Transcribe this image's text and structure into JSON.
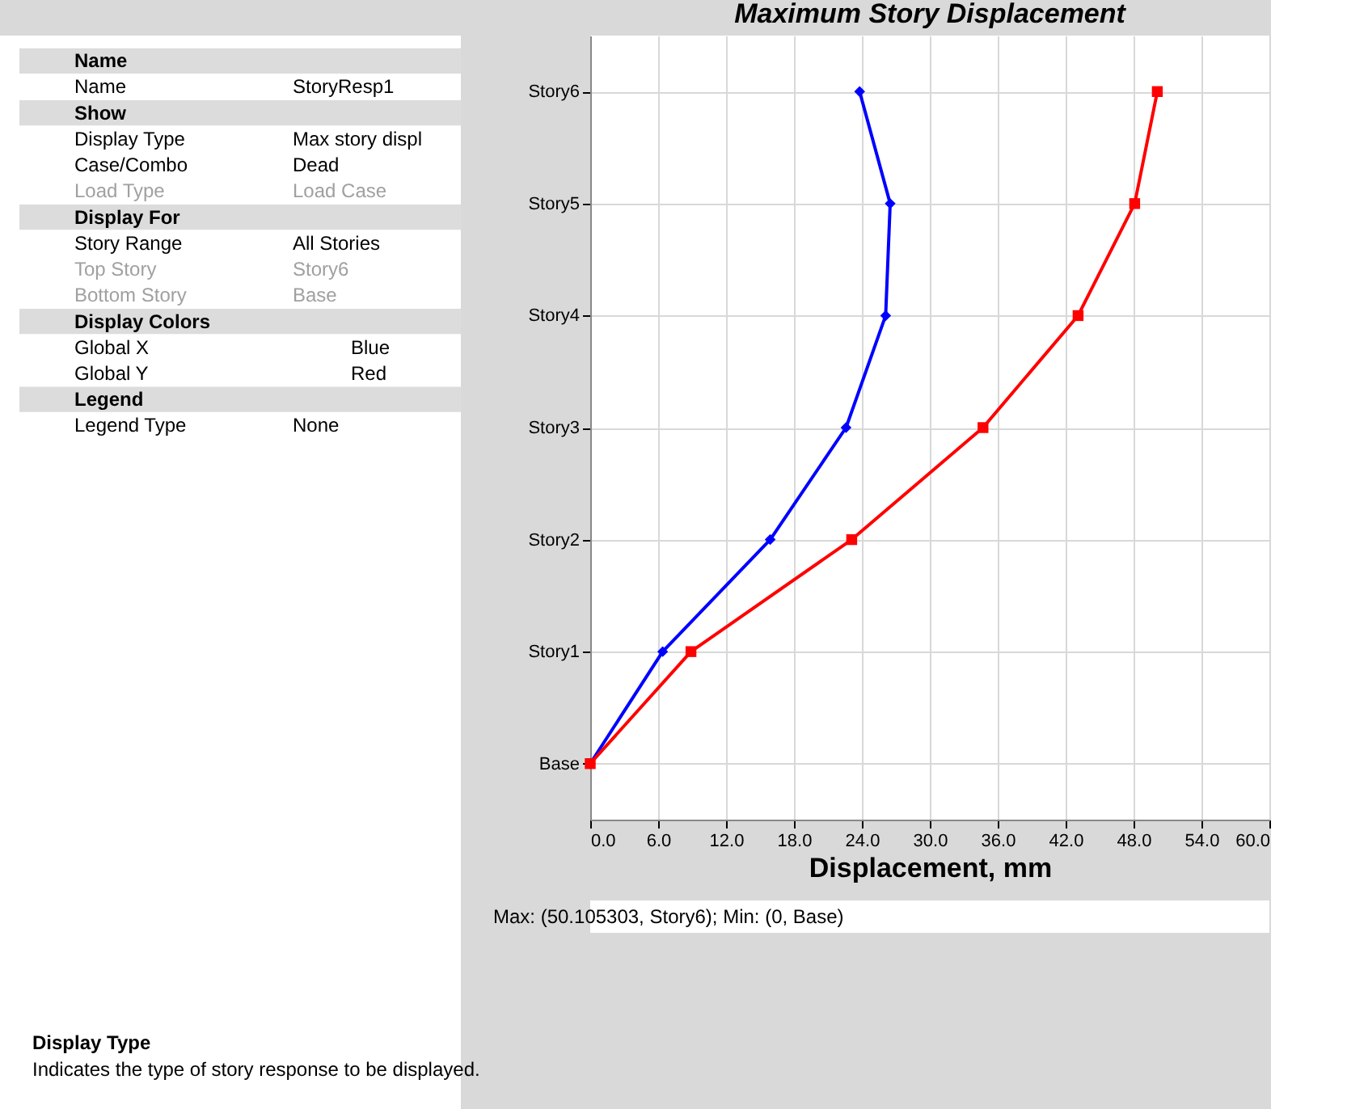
{
  "chart_data": [
    {
      "type": "other",
      "annotations": [
        "Name",
        "Name",
        "StoryResp1",
        "Show",
        "Display Type",
        "Max story displ",
        "Case/Combo",
        "Dead",
        "Load Type",
        "Load Case",
        "Display For",
        "Story Range",
        "All Stories",
        "Top Story",
        "Story6",
        "Bottom Story",
        "Base",
        "Display Colors",
        "Global X",
        "Blue",
        "Global Y",
        "Red",
        "Legend",
        "Legend Type",
        "None",
        "Display Type",
        "Indicates the type of story response to be displayed."
      ]
    },
    {
      "type": "line",
      "title": "Maximum Story Displacement",
      "xlabel": "Displacement, mm",
      "orientation": "horizontal",
      "categories": [
        "Story6",
        "Story5",
        "Story4",
        "Story3",
        "Story2",
        "Story1",
        "Base"
      ],
      "series": [
        {
          "color": "#0000ff",
          "marker": "diamond",
          "values": [
            23.8,
            26.5,
            26.1,
            22.6,
            15.9,
            6.4,
            0
          ]
        },
        {
          "color": "#ff0000",
          "marker": "square",
          "values": [
            50.1,
            48.1,
            43.1,
            34.7,
            23.1,
            8.9,
            0
          ]
        }
      ],
      "xlim": [
        0,
        60
      ],
      "xticks": [
        {
          "value": 0,
          "label": "0.0"
        },
        {
          "value": 6,
          "label": "6.0"
        },
        {
          "value": 12,
          "label": "12.0"
        },
        {
          "value": 18,
          "label": "18.0"
        },
        {
          "value": 24,
          "label": "24.0"
        },
        {
          "value": 30,
          "label": "30.0"
        },
        {
          "value": 36,
          "label": "36.0"
        },
        {
          "value": 42,
          "label": "42.0"
        },
        {
          "value": 48,
          "label": "48.0"
        },
        {
          "value": 54,
          "label": "54.0"
        },
        {
          "value": 60,
          "label": "60.0"
        }
      ],
      "grid": true,
      "annotations": [
        "Max: (50.105303, Story6);   Min: (0, Base)"
      ]
    }
  ]
}
